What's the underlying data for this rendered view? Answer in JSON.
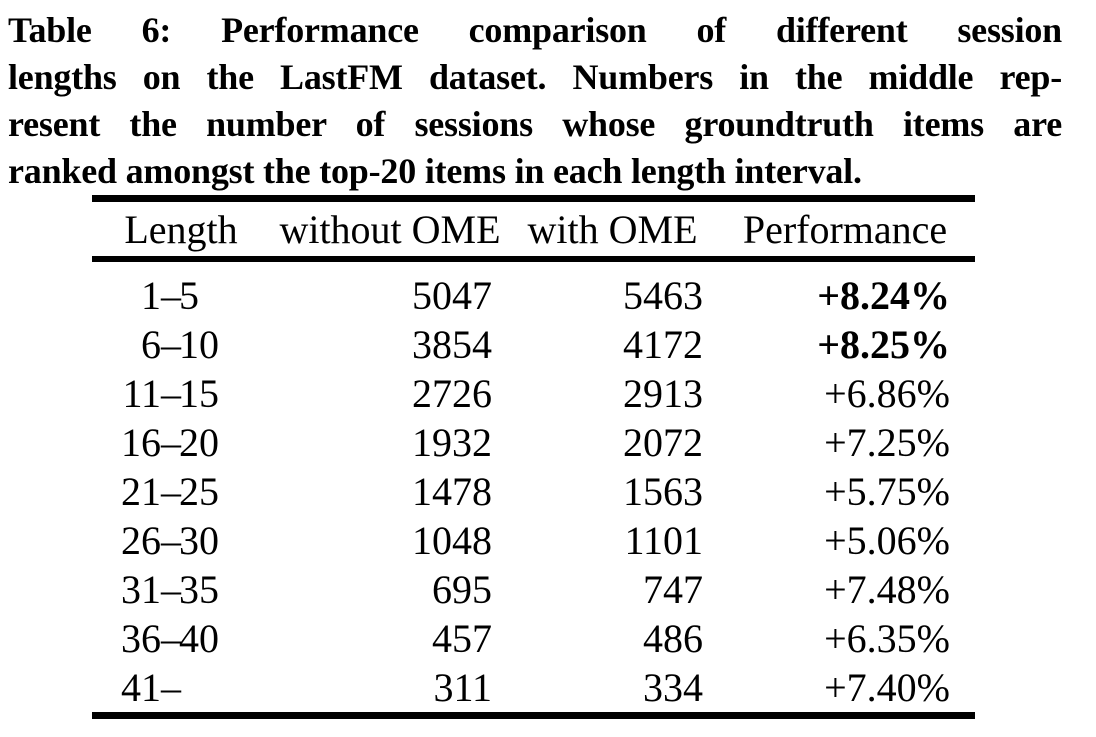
{
  "caption": {
    "lines": [
      "Table 6: Performance comparison of different session",
      "lengths on the LastFM dataset. Numbers in the middle rep-",
      "resent the number of sessions whose groundtruth items are",
      "ranked amongst the top-20 items in each length interval."
    ]
  },
  "table": {
    "length_dash": "–",
    "columns": [
      "Length",
      "without OME",
      "with OME",
      "Performance"
    ],
    "rows": [
      {
        "length_from": "1",
        "length_to": "5",
        "length_label": "1–5",
        "without_ome": "5047",
        "with_ome": "5463",
        "performance": "+8.24%",
        "performance_bold": true
      },
      {
        "length_from": "6",
        "length_to": "10",
        "length_label": "6–10",
        "without_ome": "3854",
        "with_ome": "4172",
        "performance": "+8.25%",
        "performance_bold": true
      },
      {
        "length_from": "11",
        "length_to": "15",
        "length_label": "11–15",
        "without_ome": "2726",
        "with_ome": "2913",
        "performance": "+6.86%",
        "performance_bold": false
      },
      {
        "length_from": "16",
        "length_to": "20",
        "length_label": "16–20",
        "without_ome": "1932",
        "with_ome": "2072",
        "performance": "+7.25%",
        "performance_bold": false
      },
      {
        "length_from": "21",
        "length_to": "25",
        "length_label": "21–25",
        "without_ome": "1478",
        "with_ome": "1563",
        "performance": "+5.75%",
        "performance_bold": false
      },
      {
        "length_from": "26",
        "length_to": "30",
        "length_label": "26–30",
        "without_ome": "1048",
        "with_ome": "1101",
        "performance": "+5.06%",
        "performance_bold": false
      },
      {
        "length_from": "31",
        "length_to": "35",
        "length_label": "31–35",
        "without_ome": "695",
        "with_ome": "747",
        "performance": "+7.48%",
        "performance_bold": false
      },
      {
        "length_from": "36",
        "length_to": "40",
        "length_label": "36–40",
        "without_ome": "457",
        "with_ome": "486",
        "performance": "+6.35%",
        "performance_bold": false
      },
      {
        "length_from": "41",
        "length_to": "",
        "length_label": "41–",
        "without_ome": "311",
        "with_ome": "334",
        "performance": "+7.40%",
        "performance_bold": false
      }
    ]
  }
}
